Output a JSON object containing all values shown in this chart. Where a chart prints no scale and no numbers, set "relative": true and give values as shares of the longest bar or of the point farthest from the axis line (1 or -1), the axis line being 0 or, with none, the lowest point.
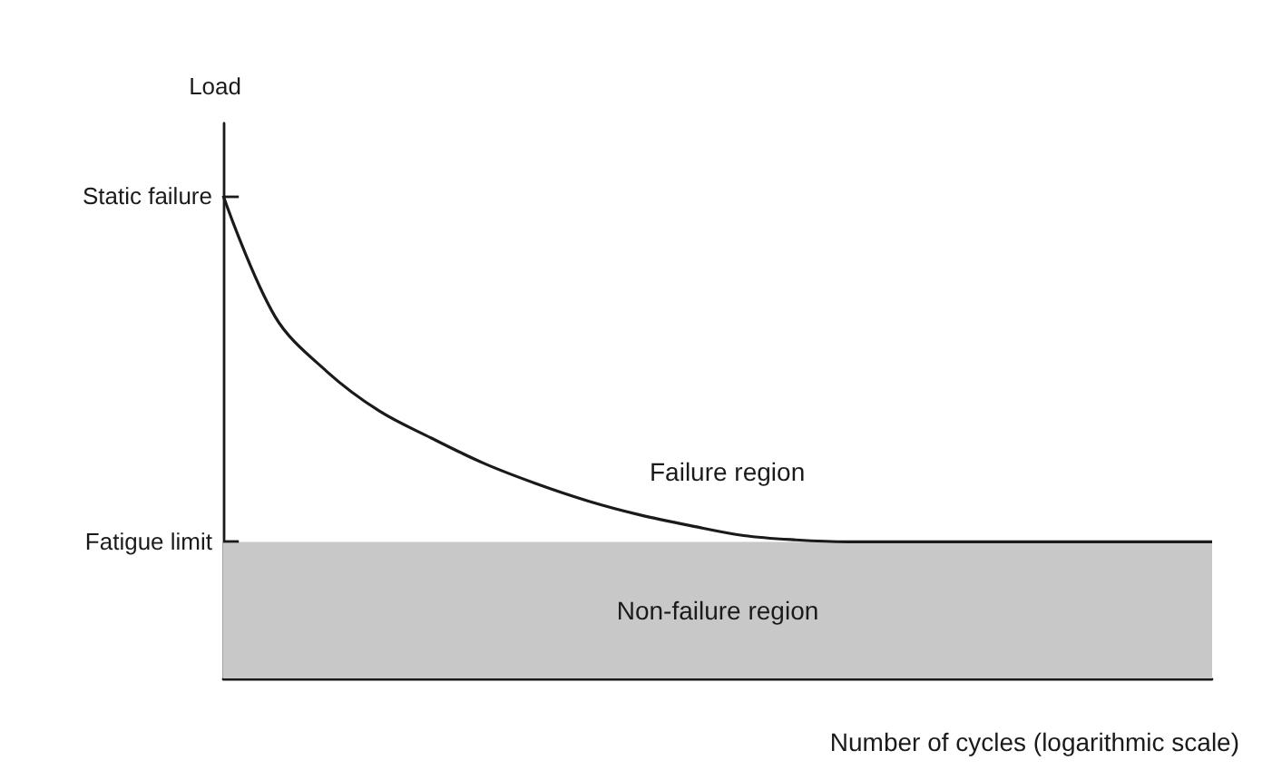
{
  "chart_data": {
    "type": "line",
    "relative": true,
    "ylabel": "Load",
    "xlabel": "Number of cycles (logarithmic scale)",
    "categories": [
      null,
      null,
      null,
      null,
      null,
      null,
      null,
      null,
      null,
      null,
      null,
      null,
      null,
      null,
      null,
      null,
      null,
      null,
      null,
      null
    ],
    "series": [
      {
        "color": "#1a1a1a",
        "values": [
          1.0,
          0.749,
          0.635,
          0.554,
          0.498,
          0.446,
          0.404,
          0.368,
          0.339,
          0.316,
          0.296,
          0.287,
          0.283,
          0.283,
          0.283,
          0.283,
          0.283,
          0.283,
          0.283,
          0.283
        ]
      }
    ],
    "ref_lines": [
      {
        "axis": "y",
        "value": 1.0,
        "label": "Static failure"
      },
      {
        "axis": "y",
        "value": 0.283,
        "label": "Fatigue limit"
      }
    ],
    "bands": [
      {
        "axis": "y",
        "from": 0,
        "to": 0.283,
        "label": "Non-failure region",
        "color": "#c8c8c8"
      }
    ],
    "annotations": [
      "Failure region"
    ],
    "marker": "none",
    "line_style": "solid",
    "grid": false
  }
}
